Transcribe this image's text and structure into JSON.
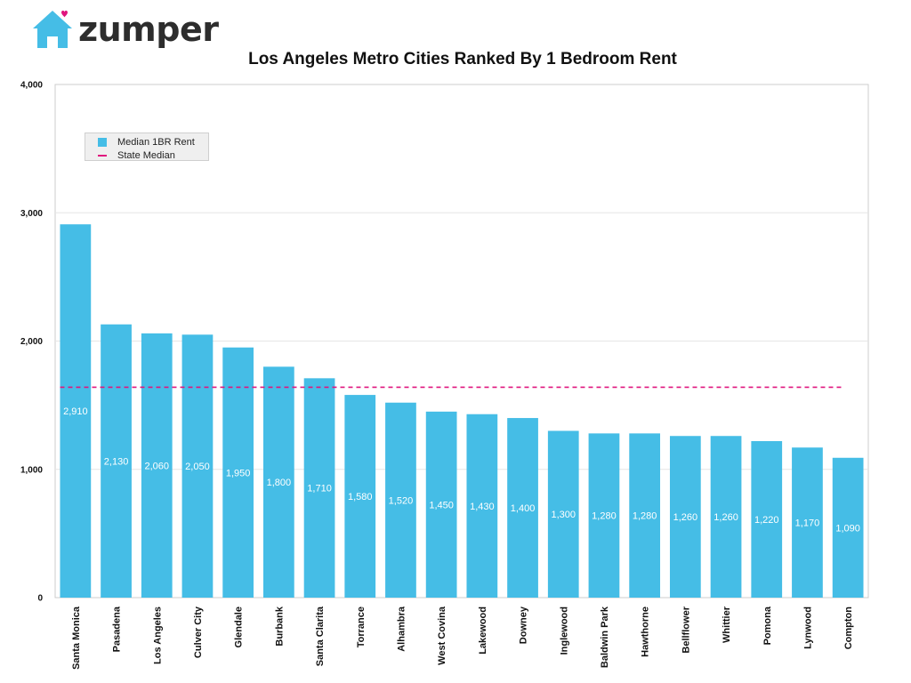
{
  "logo": {
    "text": "zumper",
    "icon": "house-heart-icon"
  },
  "colors": {
    "bar": "#45bde6",
    "median_line": "#e0157e",
    "logo_house": "#45bde6",
    "logo_heart": "#e0157e",
    "grid": "#e6e6e6",
    "axis": "#cccccc"
  },
  "chart_data": {
    "type": "bar",
    "title": "Los Angeles Metro Cities Ranked By 1 Bedroom Rent",
    "xlabel": "",
    "ylabel": "",
    "ylim": [
      0,
      4000
    ],
    "yticks": [
      0,
      1000,
      2000,
      3000,
      4000
    ],
    "ytick_labels": [
      "0",
      "1,000",
      "2,000",
      "3,000",
      "4,000"
    ],
    "grid": true,
    "legend_position": "top-left",
    "categories": [
      "Santa Monica",
      "Pasadena",
      "Los Angeles",
      "Culver City",
      "Glendale",
      "Burbank",
      "Santa Clarita",
      "Torrance",
      "Alhambra",
      "West Covina",
      "Lakewood",
      "Downey",
      "Inglewood",
      "Baldwin Park",
      "Hawthorne",
      "Bellflower",
      "Whittier",
      "Pomona",
      "Lynwood",
      "Compton"
    ],
    "series": [
      {
        "name": "Median 1BR Rent",
        "values": [
          2910,
          2130,
          2060,
          2050,
          1950,
          1800,
          1710,
          1580,
          1520,
          1450,
          1430,
          1400,
          1300,
          1280,
          1280,
          1260,
          1260,
          1220,
          1170,
          1090
        ],
        "value_labels": [
          "2,910",
          "2,130",
          "2,060",
          "2,050",
          "1,950",
          "1,800",
          "1,710",
          "1,580",
          "1,520",
          "1,450",
          "1,430",
          "1,400",
          "1,300",
          "1,280",
          "1,280",
          "1,260",
          "1,260",
          "1,220",
          "1,170",
          "1,090"
        ]
      }
    ],
    "reference_lines": [
      {
        "name": "State Median",
        "value": 1640,
        "style": "dashed"
      }
    ]
  }
}
